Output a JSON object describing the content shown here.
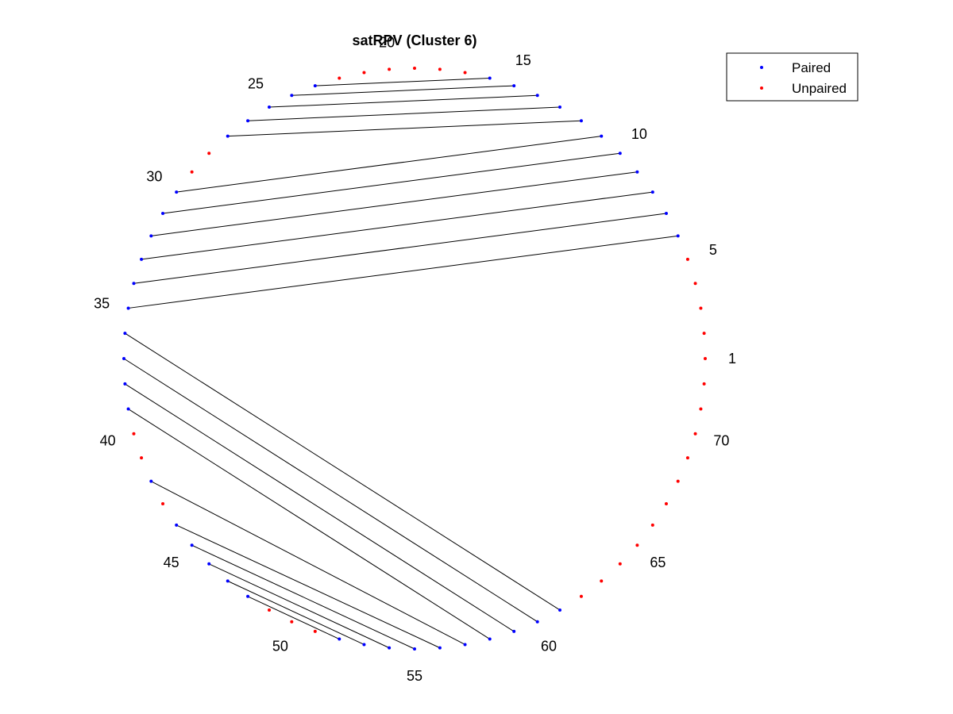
{
  "title": "satRPV (Cluster 6)",
  "colors": {
    "paired": "#0000ff",
    "unpaired": "#ff0000",
    "line": "#000000"
  },
  "legend": {
    "placement": "top-right",
    "items": [
      {
        "key": "paired",
        "label": "Paired"
      },
      {
        "key": "unpaired",
        "label": "Unpaired"
      }
    ]
  },
  "n_positions": 72,
  "index_labels": [
    1,
    5,
    10,
    15,
    20,
    25,
    30,
    35,
    40,
    45,
    50,
    55,
    60,
    65,
    70
  ],
  "pairs": [
    [
      6,
      35
    ],
    [
      7,
      34
    ],
    [
      8,
      33
    ],
    [
      9,
      32
    ],
    [
      10,
      31
    ],
    [
      11,
      30
    ],
    [
      12,
      27
    ],
    [
      13,
      26
    ],
    [
      14,
      25
    ],
    [
      15,
      24
    ],
    [
      16,
      23
    ],
    [
      36,
      61
    ],
    [
      37,
      60
    ],
    [
      38,
      59
    ],
    [
      39,
      58
    ],
    [
      42,
      57
    ],
    [
      44,
      56
    ],
    [
      45,
      55
    ],
    [
      46,
      54
    ],
    [
      47,
      53
    ],
    [
      48,
      52
    ]
  ]
}
